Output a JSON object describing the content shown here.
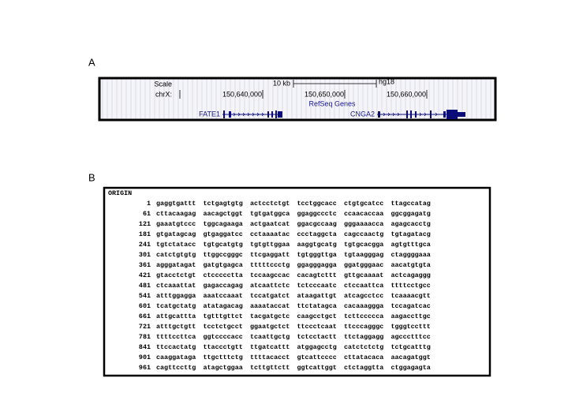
{
  "panel_a": {
    "label": "A",
    "scale_label": "Scale",
    "chrom": "chrX:",
    "scale_bar": "10 kb",
    "assembly": "hg18",
    "positions": [
      "150,640,000",
      "150,650,000",
      "150,660,000"
    ],
    "track": "RefSeq Genes",
    "genes": [
      "FATE1",
      "CNGA2"
    ]
  },
  "panel_b": {
    "label": "B",
    "header": "ORIGIN",
    "rows": [
      [
        1,
        "gaggtgattt",
        "tctgagtgtg",
        "actcctctgt",
        "tcctggcacc",
        "ctgtgcatcc",
        "ttagccatag"
      ],
      [
        61,
        "cttacaagag",
        "aacagctggt",
        "tgtgatggca",
        "ggaggccctc",
        "ccaacaccaa",
        "ggcggagatg"
      ],
      [
        121,
        "gaaatgtccc",
        "tggcagaaga",
        "actgaatcat",
        "ggacgccaag",
        "gggaaaacca",
        "agagcacctg"
      ],
      [
        181,
        "gtgatagcag",
        "gtgaggatcc",
        "cctaaaatac",
        "ccctaggcta",
        "cagccaactg",
        "tgtagatacg"
      ],
      [
        241,
        "tgtctatacc",
        "tgtgcatgtg",
        "tgtgttggaa",
        "aaggtgcatg",
        "tgtgcacgga",
        "agtgtttgca"
      ],
      [
        301,
        "catctgtgtg",
        "ttggccgggc",
        "ttcgaggatt",
        "tgtgggttga",
        "tgtaagggag",
        "ctaggggaaa"
      ],
      [
        361,
        "agggatagat",
        "gatgtgagca",
        "tttttccctg",
        "ggagggagga",
        "ggatgggaac",
        "aacatgtgta"
      ],
      [
        421,
        "gtacctctgt",
        "ctccccctta",
        "tccaagccac",
        "cacagtcttt",
        "gttgcaaaat",
        "actcagaggg"
      ],
      [
        481,
        "ctcaaattat",
        "gagaccagag",
        "atcaattctc",
        "tctcccaatc",
        "ctccaattca",
        "ttttcctgcc"
      ],
      [
        541,
        "atttggagga",
        "aaatccaaat",
        "tccatgatct",
        "ataagattgt",
        "atcagcctcc",
        "tcaaaacgtt"
      ],
      [
        601,
        "tcatgctatg",
        "atatagacag",
        "aaaataccat",
        "ttctatagca",
        "cacaaaggga",
        "tccagatcac"
      ],
      [
        661,
        "attgcattta",
        "tgtttgttct",
        "tacgatgctc",
        "caagcctgct",
        "tcttccccca",
        "aagaccttgc"
      ],
      [
        721,
        "atttgctgtt",
        "tcctctgcct",
        "ggaatgctct",
        "ttccctcaat",
        "ttcccagggc",
        "tgggtccttt"
      ],
      [
        781,
        "ttttccttca",
        "ggtccccacc",
        "tcaattgctg",
        "tctcctactt",
        "ttctaggagg",
        "agccctttcc"
      ],
      [
        841,
        "ttccactatg",
        "ttaccctgtt",
        "ttgatcattt",
        "atggagcctg",
        "catctctctg",
        "tctgcatttg"
      ],
      [
        901,
        "caaggataga",
        "ttgctttctg",
        "ttttacacct",
        "gtcattcccc",
        "cttatacaca",
        "aacagatggt"
      ],
      [
        961,
        "cagttccttg",
        "atagctggaa",
        "tcttgttctt",
        "ggtcattggt",
        "ctctaggtta",
        "ctggagagta"
      ]
    ]
  }
}
